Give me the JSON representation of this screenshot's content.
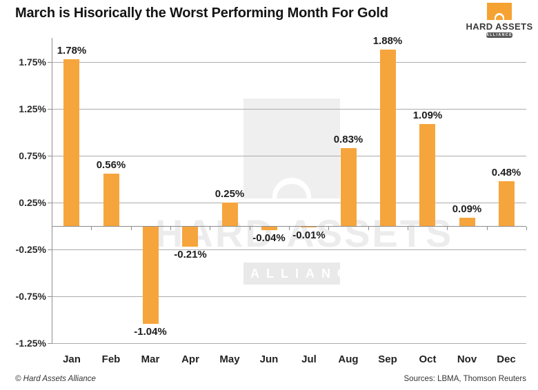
{
  "title": "March is Hisorically the Worst Performing Month For Gold",
  "logo": {
    "name": "HARD ASSETS",
    "badge": "ALLIANCE"
  },
  "watermark": {
    "text": "HARD ASSETS",
    "badge": "ALLIANCE"
  },
  "footer": {
    "left": "© Hard Assets Alliance",
    "right": "Sources: LBMA, Thomson Reuters"
  },
  "colors": {
    "bar": "#F6A53C",
    "grid": "#ABABAB",
    "axis": "#8A8A8A",
    "logo_orange": "#F5A233",
    "watermark_gray": "#EFEFEF"
  },
  "chart_data": {
    "type": "bar",
    "title": "March is Hisorically the Worst Performing Month For Gold",
    "categories": [
      "Jan",
      "Feb",
      "Mar",
      "Apr",
      "May",
      "Jun",
      "Jul",
      "Aug",
      "Sep",
      "Oct",
      "Nov",
      "Dec"
    ],
    "values": [
      1.78,
      0.56,
      -1.04,
      -0.21,
      0.25,
      -0.04,
      -0.01,
      0.83,
      1.88,
      1.09,
      0.09,
      0.48
    ],
    "value_labels": [
      "1.78%",
      "0.56%",
      "-1.04%",
      "-0.21%",
      "0.25%",
      "-0.04%",
      "-0.01%",
      "0.83%",
      "1.88%",
      "1.09%",
      "0.09%",
      "0.48%"
    ],
    "y_tick_labels": [
      "1.75%",
      "1.25%",
      "0.75%",
      "0.25%",
      "-0.25%",
      "-0.75%",
      "-1.25%"
    ],
    "y_tick_values": [
      1.75,
      1.25,
      0.75,
      0.25,
      -0.25,
      -0.75,
      -1.25
    ],
    "ylim": [
      -1.25,
      2.0
    ],
    "xlabel": "",
    "ylabel": "",
    "grid": true,
    "legend": false
  }
}
